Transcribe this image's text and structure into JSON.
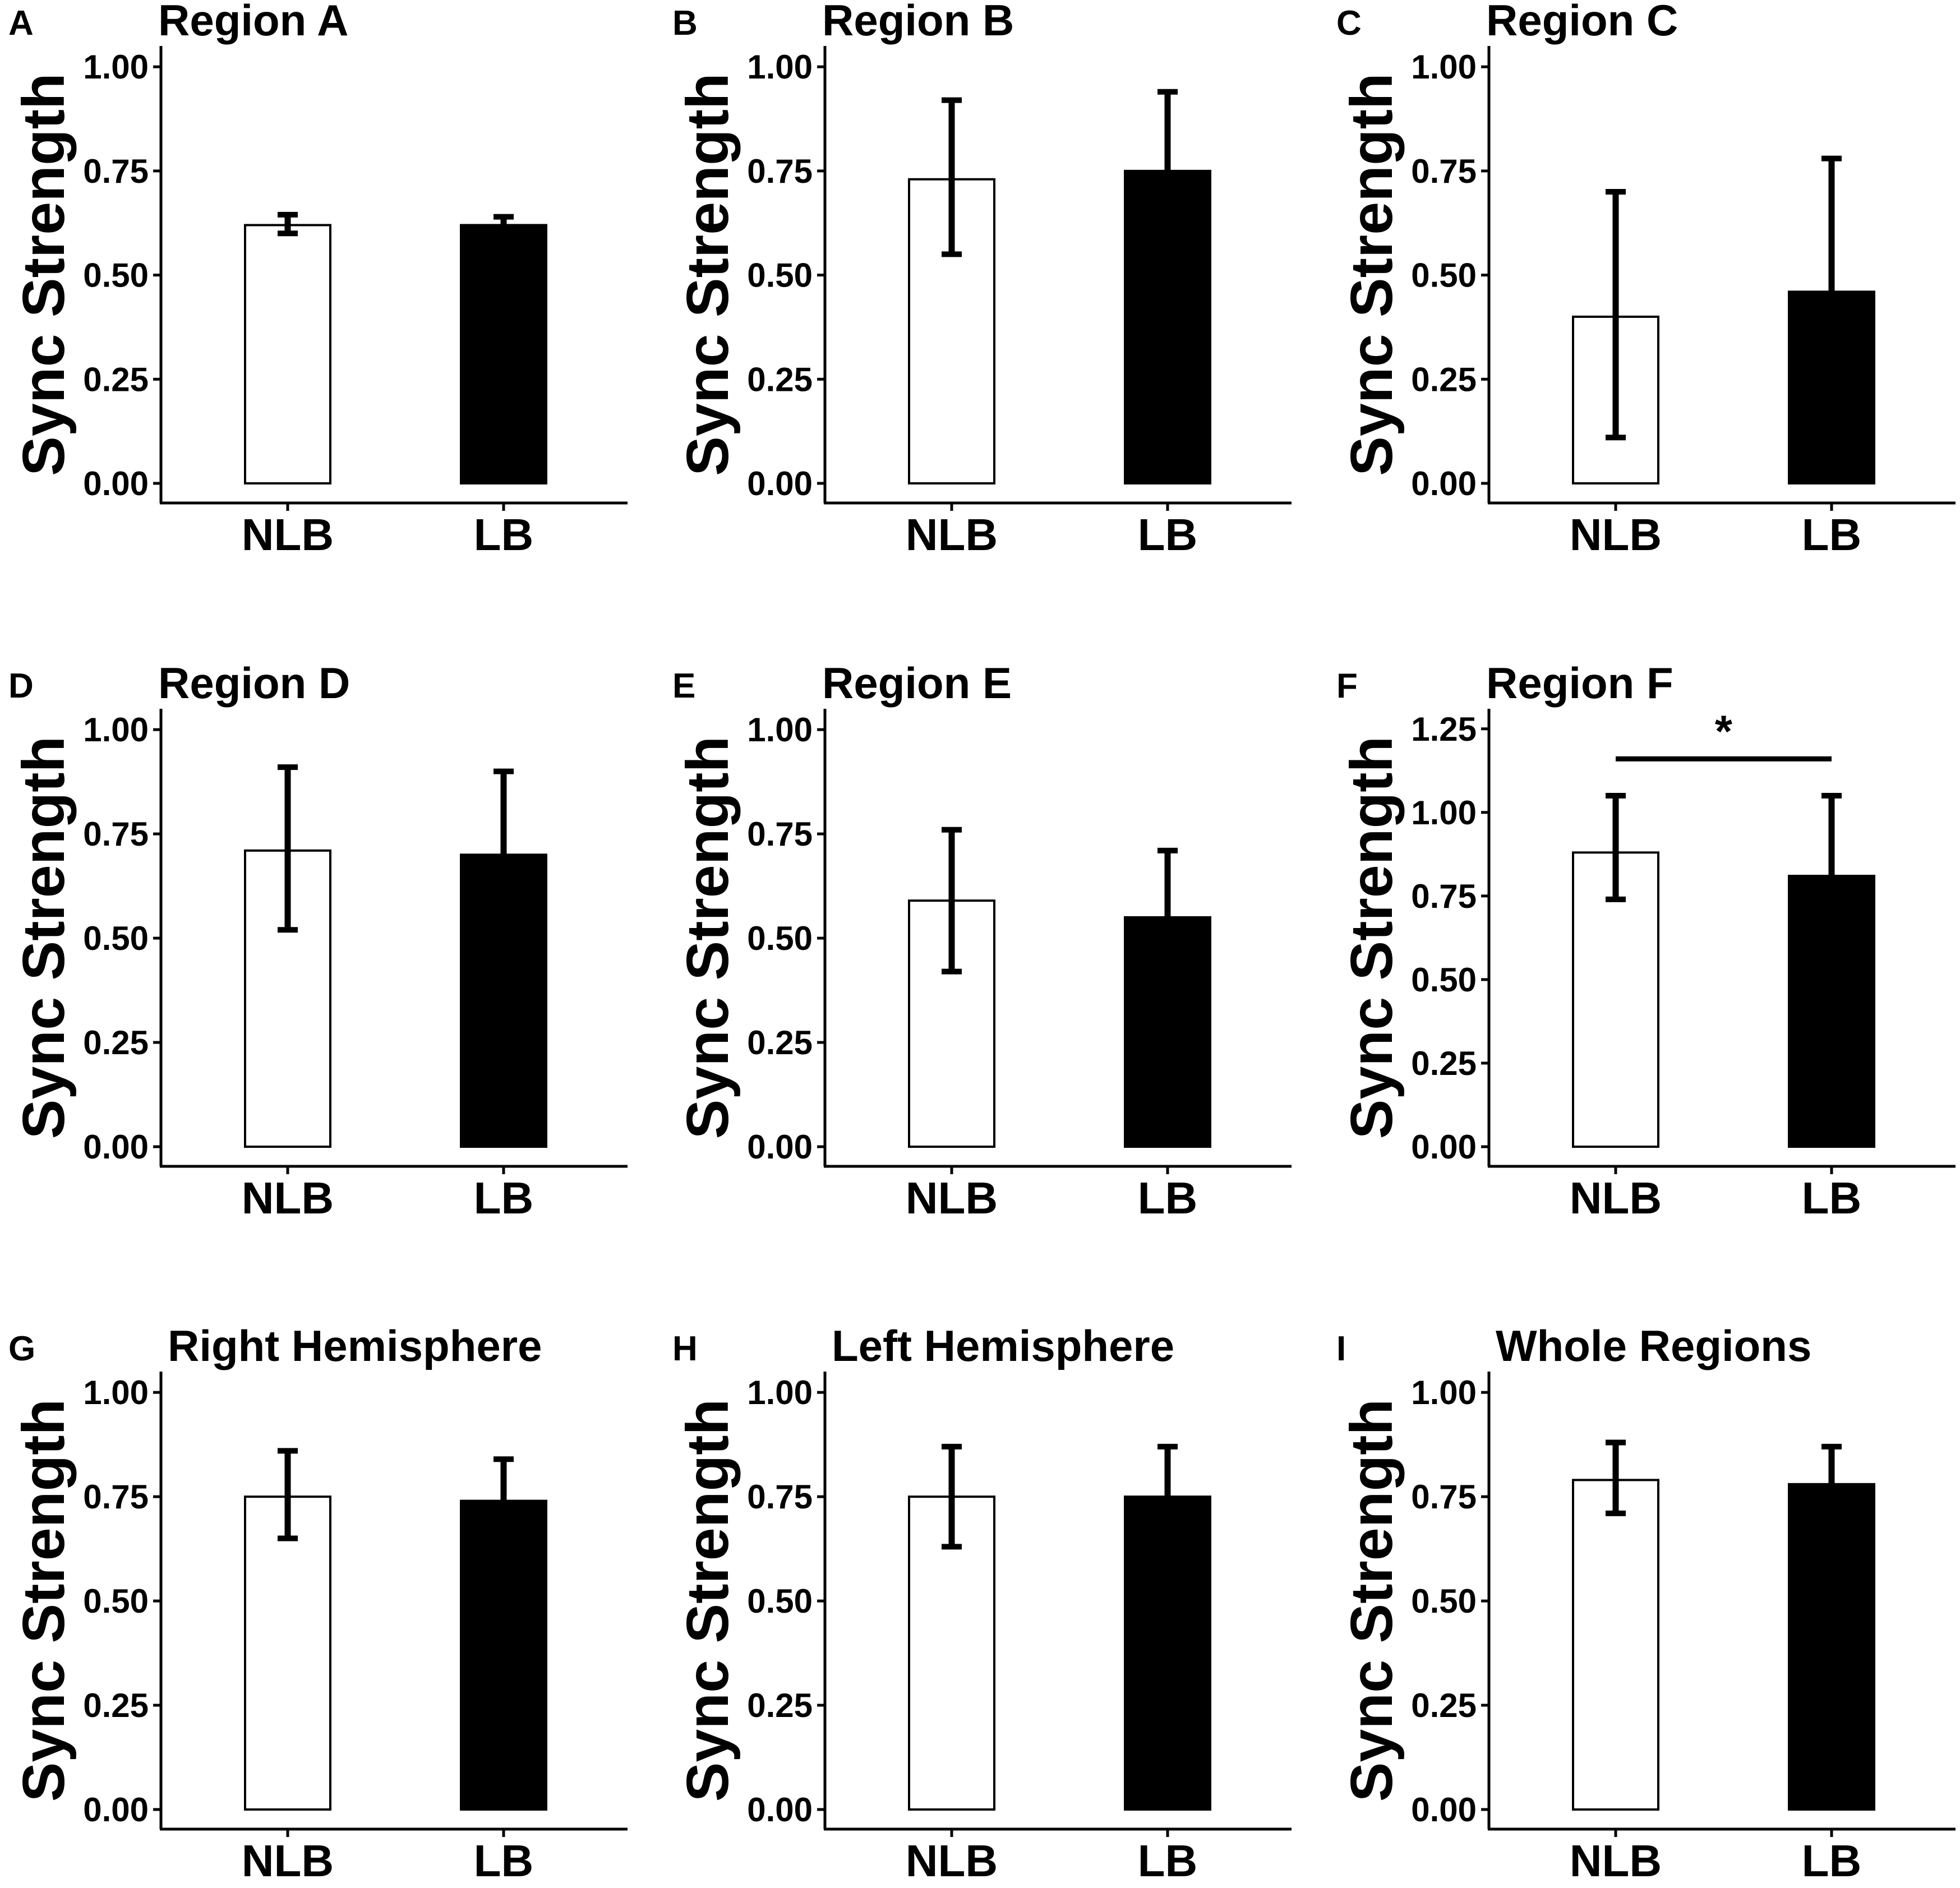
{
  "colors": {
    "nlb_fill": "#ffffff",
    "lb_fill": "#000000",
    "stroke": "#000000"
  },
  "chart_data": [
    {
      "panel": "A",
      "type": "bar",
      "title": "Region A",
      "ylabel": "Sync Strength",
      "xlabel": "",
      "categories": [
        "NLB",
        "LB"
      ],
      "values": [
        0.62,
        0.62
      ],
      "error_upper": [
        0.645,
        0.64
      ],
      "error_lower": [
        0.6,
        0.6
      ],
      "ylim": [
        0,
        1.05
      ],
      "yticks": [
        0,
        0.25,
        0.5,
        0.75,
        1.0
      ],
      "ytick_labels": [
        "0.00",
        "0.25",
        "0.50",
        "0.75",
        "1.00"
      ],
      "significance": null
    },
    {
      "panel": "B",
      "type": "bar",
      "title": "Region B",
      "ylabel": "Sync Strength",
      "xlabel": "",
      "categories": [
        "NLB",
        "LB"
      ],
      "values": [
        0.73,
        0.75
      ],
      "error_upper": [
        0.92,
        0.94
      ],
      "error_lower": [
        0.55,
        null
      ],
      "ylim": [
        0,
        1.05
      ],
      "yticks": [
        0,
        0.25,
        0.5,
        0.75,
        1.0
      ],
      "ytick_labels": [
        "0.00",
        "0.25",
        "0.50",
        "0.75",
        "1.00"
      ],
      "significance": null
    },
    {
      "panel": "C",
      "type": "bar",
      "title": "Region C",
      "ylabel": "Sync Strength",
      "xlabel": "",
      "categories": [
        "NLB",
        "LB"
      ],
      "values": [
        0.4,
        0.46
      ],
      "error_upper": [
        0.7,
        0.78
      ],
      "error_lower": [
        0.11,
        null
      ],
      "ylim": [
        0,
        1.05
      ],
      "yticks": [
        0,
        0.25,
        0.5,
        0.75,
        1.0
      ],
      "ytick_labels": [
        "0.00",
        "0.25",
        "0.50",
        "0.75",
        "1.00"
      ],
      "significance": null
    },
    {
      "panel": "D",
      "type": "bar",
      "title": "Region D",
      "ylabel": "Sync Strength",
      "xlabel": "",
      "categories": [
        "NLB",
        "LB"
      ],
      "values": [
        0.71,
        0.7
      ],
      "error_upper": [
        0.91,
        0.9
      ],
      "error_lower": [
        0.52,
        null
      ],
      "ylim": [
        0,
        1.05
      ],
      "yticks": [
        0,
        0.25,
        0.5,
        0.75,
        1.0
      ],
      "ytick_labels": [
        "0.00",
        "0.25",
        "0.50",
        "0.75",
        "1.00"
      ],
      "significance": null
    },
    {
      "panel": "E",
      "type": "bar",
      "title": "Region E",
      "ylabel": "Sync Strength",
      "xlabel": "",
      "categories": [
        "NLB",
        "LB"
      ],
      "values": [
        0.59,
        0.55
      ],
      "error_upper": [
        0.76,
        0.71
      ],
      "error_lower": [
        0.42,
        null
      ],
      "ylim": [
        0,
        1.05
      ],
      "yticks": [
        0,
        0.25,
        0.5,
        0.75,
        1.0
      ],
      "ytick_labels": [
        "0.00",
        "0.25",
        "0.50",
        "0.75",
        "1.00"
      ],
      "significance": null
    },
    {
      "panel": "F",
      "type": "bar",
      "title": "Region F",
      "ylabel": "Sync Strength",
      "xlabel": "",
      "categories": [
        "NLB",
        "LB"
      ],
      "values": [
        0.88,
        0.81
      ],
      "error_upper": [
        1.05,
        1.05
      ],
      "error_lower": [
        0.74,
        null
      ],
      "ylim": [
        0,
        1.31
      ],
      "yticks": [
        0,
        0.25,
        0.5,
        0.75,
        1.0,
        1.25
      ],
      "ytick_labels": [
        "0.00",
        "0.25",
        "0.50",
        "0.75",
        "1.00",
        "1.25"
      ],
      "significance": {
        "label": "*",
        "y": 1.16
      }
    },
    {
      "panel": "G",
      "type": "bar",
      "title": "Right Hemisphere",
      "ylabel": "Sync Strength",
      "xlabel": "",
      "categories": [
        "NLB",
        "LB"
      ],
      "values": [
        0.75,
        0.74
      ],
      "error_upper": [
        0.86,
        0.84
      ],
      "error_lower": [
        0.65,
        null
      ],
      "ylim": [
        0,
        1.05
      ],
      "yticks": [
        0,
        0.25,
        0.5,
        0.75,
        1.0
      ],
      "ytick_labels": [
        "0.00",
        "0.25",
        "0.50",
        "0.75",
        "1.00"
      ],
      "significance": null
    },
    {
      "panel": "H",
      "type": "bar",
      "title": "Left Hemisphere",
      "ylabel": "Sync Strength",
      "xlabel": "",
      "categories": [
        "NLB",
        "LB"
      ],
      "values": [
        0.75,
        0.75
      ],
      "error_upper": [
        0.87,
        0.87
      ],
      "error_lower": [
        0.63,
        null
      ],
      "ylim": [
        0,
        1.05
      ],
      "yticks": [
        0,
        0.25,
        0.5,
        0.75,
        1.0
      ],
      "ytick_labels": [
        "0.00",
        "0.25",
        "0.50",
        "0.75",
        "1.00"
      ],
      "significance": null
    },
    {
      "panel": "I",
      "type": "bar",
      "title": "Whole Regions",
      "ylabel": "Sync Strength",
      "xlabel": "",
      "categories": [
        "NLB",
        "LB"
      ],
      "values": [
        0.79,
        0.78
      ],
      "error_upper": [
        0.88,
        0.87
      ],
      "error_lower": [
        0.71,
        null
      ],
      "ylim": [
        0,
        1.05
      ],
      "yticks": [
        0,
        0.25,
        0.5,
        0.75,
        1.0
      ],
      "ytick_labels": [
        "0.00",
        "0.25",
        "0.50",
        "0.75",
        "1.00"
      ],
      "significance": null
    }
  ]
}
